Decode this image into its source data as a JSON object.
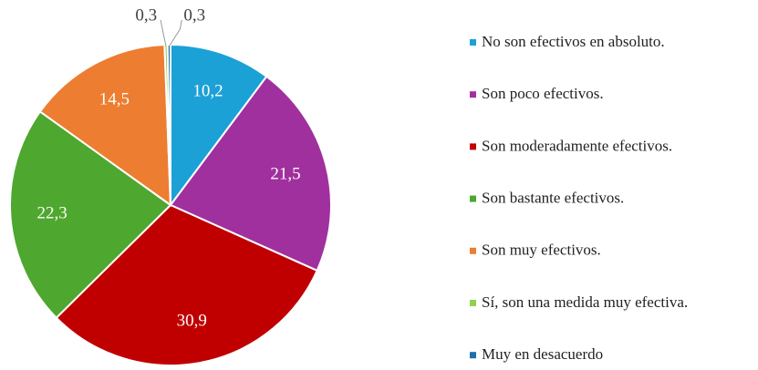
{
  "chart_data": {
    "type": "pie",
    "categories": [
      "No son efectivos en absoluto.",
      "Son poco efectivos.",
      "Son moderadamente efectivos.",
      "Son bastante efectivos.",
      "Son muy efectivos.",
      "Sí, son una medida muy efectiva.",
      "Muy en desacuerdo"
    ],
    "values": [
      10.2,
      21.5,
      30.9,
      22.3,
      14.5,
      0.3,
      0.3
    ],
    "value_labels": [
      "10,2",
      "21,5",
      "30,9",
      "22,3",
      "14,5",
      "0,3",
      "0,3"
    ],
    "colors": [
      "#1ba1d6",
      "#a0309e",
      "#c00000",
      "#4ea72e",
      "#ed7d31",
      "#92d050",
      "#1f6fa8"
    ],
    "legend": "right"
  }
}
